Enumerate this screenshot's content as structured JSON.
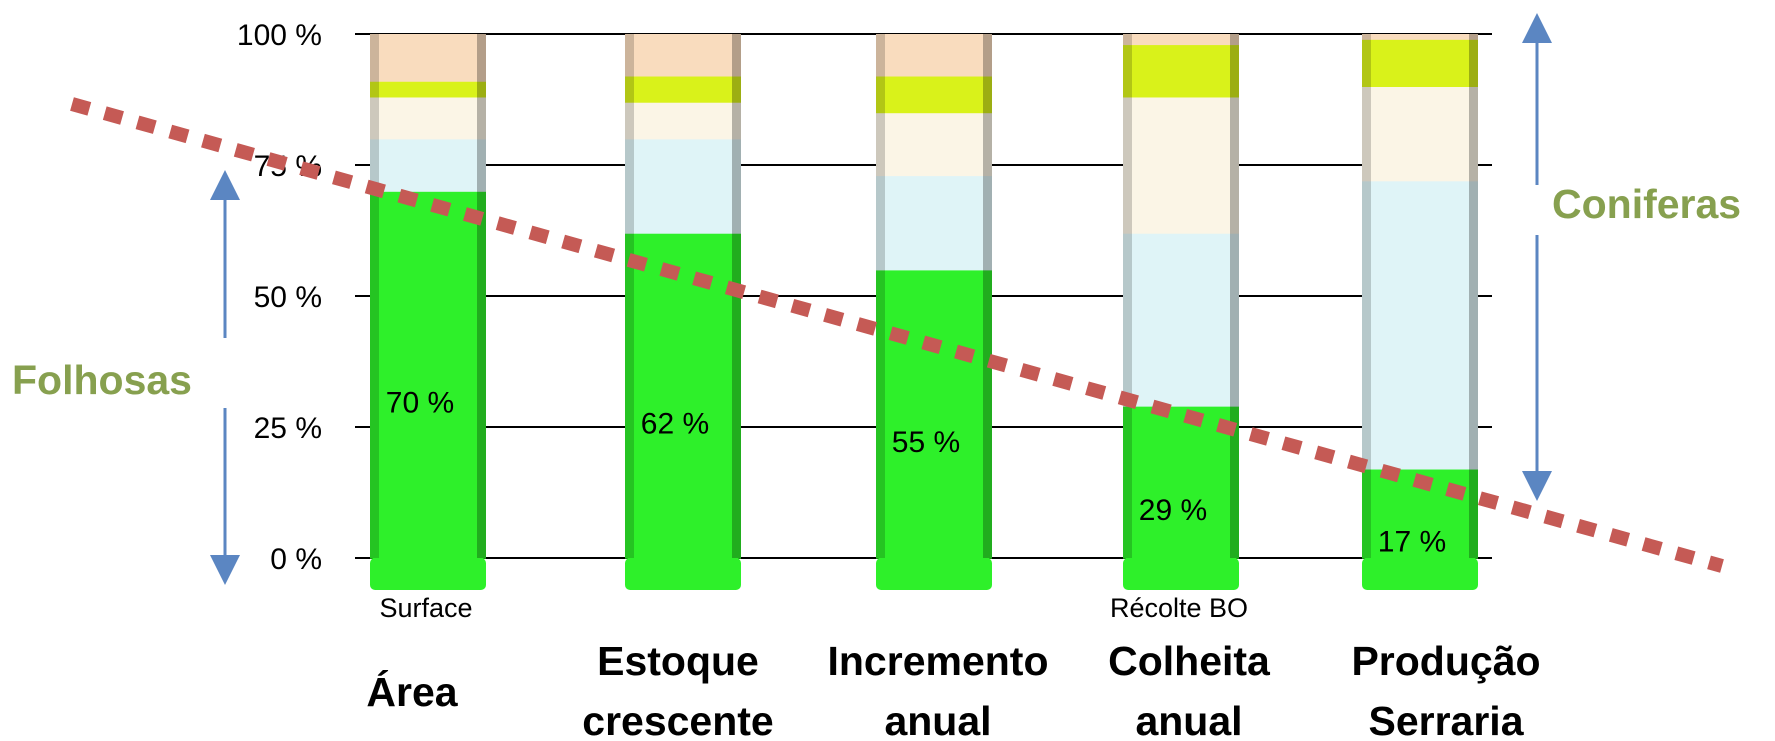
{
  "chart_data": {
    "type": "bar",
    "stacked": true,
    "categories": [
      [
        "Área"
      ],
      [
        "Estoque",
        "crescente"
      ],
      [
        "Incremento",
        "anual"
      ],
      [
        "Colheita",
        "anual"
      ],
      [
        "Produção",
        "Serraria"
      ]
    ],
    "subtitles": [
      "Surface",
      "",
      "",
      "Récolte BO",
      ""
    ],
    "yticks": [
      "0 %",
      "25 %",
      "50 %",
      "75 %",
      "100 %"
    ],
    "ylim": [
      0,
      100
    ],
    "grid": true,
    "value_labels": [
      "70 %",
      "62 %",
      "55 %",
      "29 %",
      "17 %"
    ],
    "segments": [
      [
        70,
        10,
        8,
        3,
        9
      ],
      [
        62,
        18,
        7,
        5,
        8
      ],
      [
        55,
        18,
        12,
        7,
        8
      ],
      [
        29,
        33,
        26,
        10,
        2
      ],
      [
        17,
        55,
        18,
        9,
        1
      ]
    ],
    "segment_colors": [
      "#2ef02a",
      "#dff4f7",
      "#fbf5e6",
      "#d9f21a",
      "#f9dcbe"
    ],
    "annotations": {
      "left_group": "Folhosas",
      "right_group": "Coniferas",
      "group_color": "#87a04f",
      "arrow_color": "#5b86c2",
      "trend_line_color": "#c55a55"
    }
  }
}
